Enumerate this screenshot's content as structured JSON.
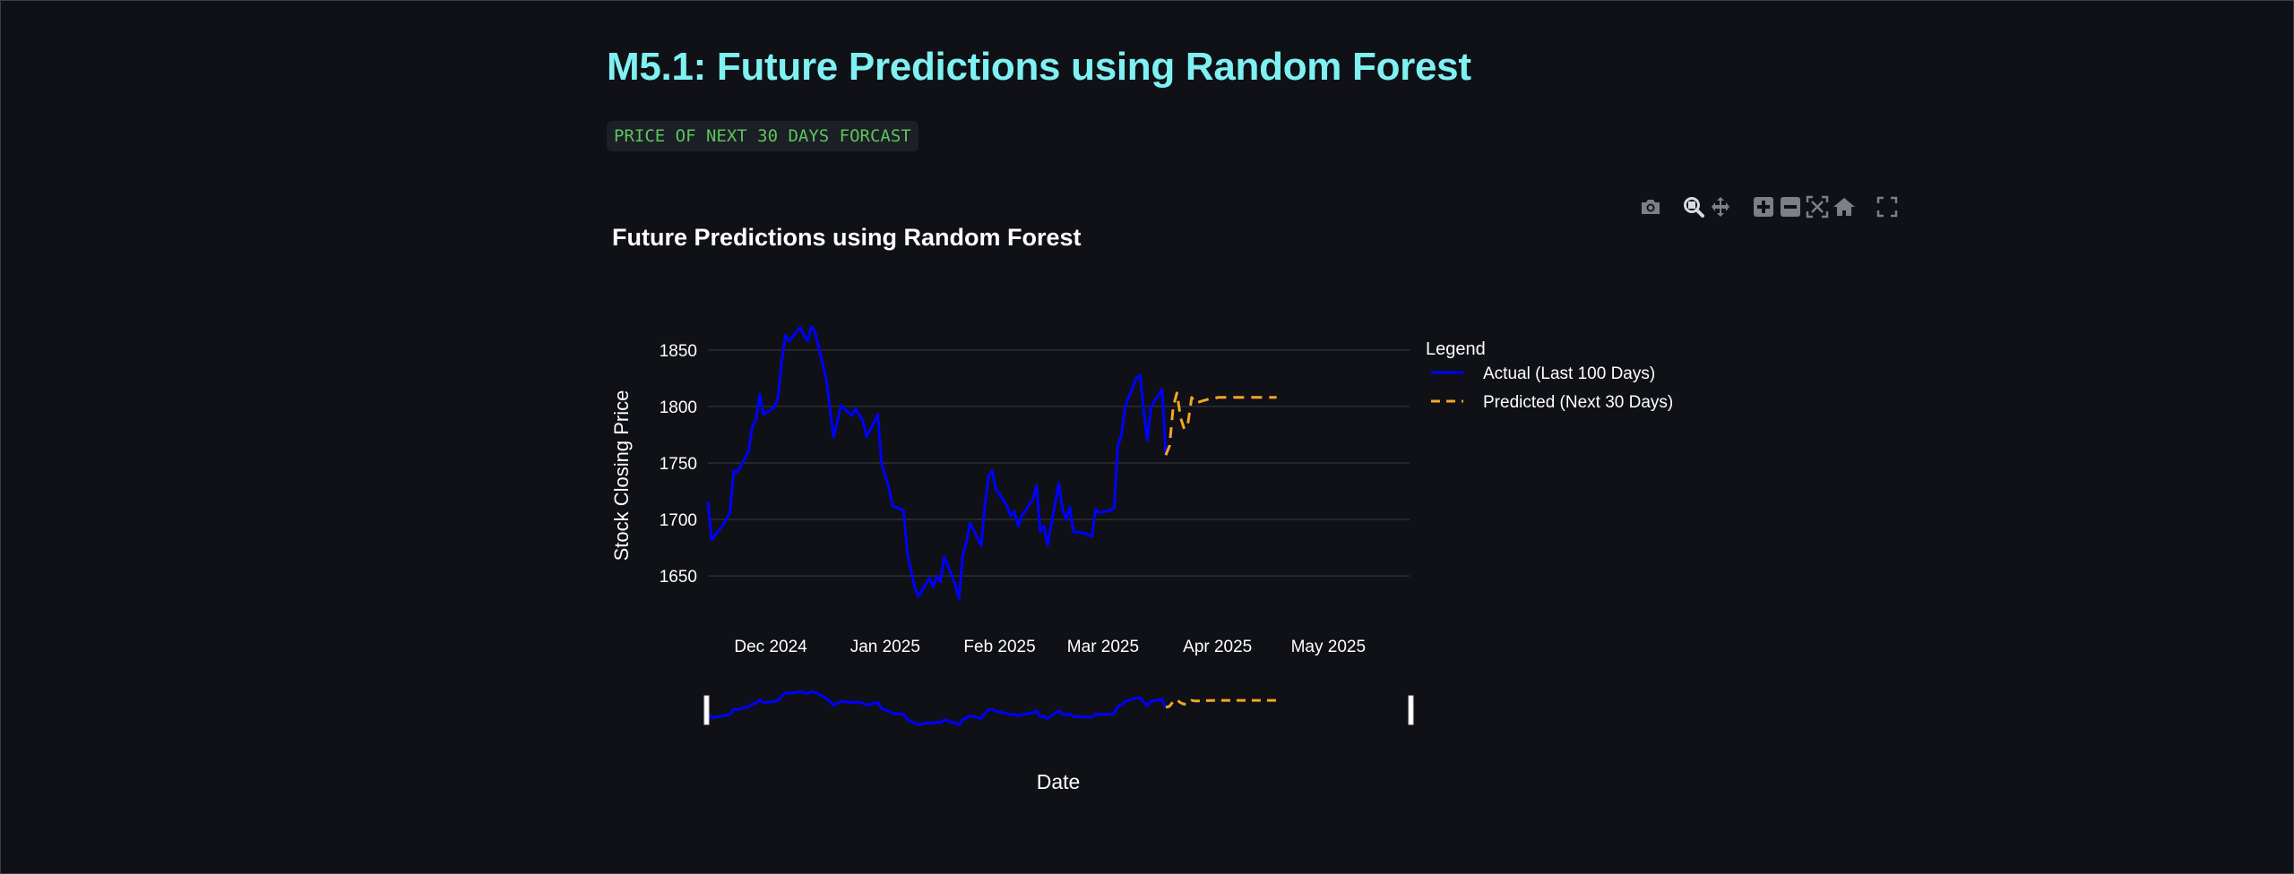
{
  "page": {
    "title": "M5.1: Future Predictions using Random Forest",
    "code_label": "PRICE OF NEXT 30 DAYS FORCAST"
  },
  "modebar": {
    "icons": [
      "camera-icon",
      "zoom-icon",
      "pan-icon",
      "zoom-in-icon",
      "zoom-out-icon",
      "autoscale-icon",
      "reset-axes-icon",
      "fullscreen-icon"
    ],
    "active": "zoom-icon",
    "color": "#7b7f88",
    "active_color": "#d8dbe0"
  },
  "chart_data": {
    "type": "line",
    "title": "Future Predictions using Random Forest",
    "xlabel": "Date",
    "ylabel": "Stock Closing Price",
    "x_ticks": [
      "Dec 2024",
      "Jan 2025",
      "Feb 2025",
      "Mar 2025",
      "Apr 2025",
      "May 2025"
    ],
    "y_ticks": [
      1650,
      1700,
      1750,
      1800,
      1850
    ],
    "ylim": [
      1620,
      1880
    ],
    "xlim": [
      "2024-11-14",
      "2025-05-23"
    ],
    "grid": true,
    "legend": {
      "title": "Legend",
      "position": "right"
    },
    "range_slider": true,
    "series": [
      {
        "name": "Actual (Last 100 Days)",
        "color": "#0000ff",
        "dash": "solid",
        "points": [
          [
            "2024-11-14",
            1716
          ],
          [
            "2024-11-15",
            1682
          ],
          [
            "2024-11-18",
            1695
          ],
          [
            "2024-11-19",
            1700
          ],
          [
            "2024-11-20",
            1706
          ],
          [
            "2024-11-21",
            1743
          ],
          [
            "2024-11-22",
            1742
          ],
          [
            "2024-11-25",
            1760
          ],
          [
            "2024-11-26",
            1782
          ],
          [
            "2024-11-27",
            1788
          ],
          [
            "2024-11-28",
            1811
          ],
          [
            "2024-11-29",
            1793
          ],
          [
            "2024-12-02",
            1799
          ],
          [
            "2024-12-03",
            1808
          ],
          [
            "2024-12-04",
            1840
          ],
          [
            "2024-12-05",
            1863
          ],
          [
            "2024-12-06",
            1858
          ],
          [
            "2024-12-09",
            1870
          ],
          [
            "2024-12-10",
            1863
          ],
          [
            "2024-12-11",
            1858
          ],
          [
            "2024-12-12",
            1871
          ],
          [
            "2024-12-13",
            1866
          ],
          [
            "2024-12-16",
            1825
          ],
          [
            "2024-12-17",
            1800
          ],
          [
            "2024-12-18",
            1773
          ],
          [
            "2024-12-19",
            1786
          ],
          [
            "2024-12-20",
            1801
          ],
          [
            "2024-12-23",
            1792
          ],
          [
            "2024-12-24",
            1798
          ],
          [
            "2024-12-26",
            1787
          ],
          [
            "2024-12-27",
            1773
          ],
          [
            "2024-12-30",
            1793
          ],
          [
            "2024-12-31",
            1750
          ],
          [
            "2025-01-02",
            1728
          ],
          [
            "2025-01-03",
            1712
          ],
          [
            "2025-01-06",
            1708
          ],
          [
            "2025-01-07",
            1670
          ],
          [
            "2025-01-08",
            1655
          ],
          [
            "2025-01-09",
            1640
          ],
          [
            "2025-01-10",
            1632
          ],
          [
            "2025-01-13",
            1648
          ],
          [
            "2025-01-14",
            1640
          ],
          [
            "2025-01-15",
            1650
          ],
          [
            "2025-01-16",
            1645
          ],
          [
            "2025-01-17",
            1667
          ],
          [
            "2025-01-20",
            1642
          ],
          [
            "2025-01-21",
            1630
          ],
          [
            "2025-01-22",
            1668
          ],
          [
            "2025-01-23",
            1680
          ],
          [
            "2025-01-24",
            1697
          ],
          [
            "2025-01-27",
            1677
          ],
          [
            "2025-01-28",
            1713
          ],
          [
            "2025-01-29",
            1738
          ],
          [
            "2025-01-30",
            1743
          ],
          [
            "2025-01-31",
            1727
          ],
          [
            "2025-02-03",
            1712
          ],
          [
            "2025-02-04",
            1703
          ],
          [
            "2025-02-05",
            1707
          ],
          [
            "2025-02-06",
            1694
          ],
          [
            "2025-02-07",
            1703
          ],
          [
            "2025-02-10",
            1718
          ],
          [
            "2025-02-11",
            1730
          ],
          [
            "2025-02-12",
            1689
          ],
          [
            "2025-02-13",
            1694
          ],
          [
            "2025-02-14",
            1677
          ],
          [
            "2025-02-17",
            1732
          ],
          [
            "2025-02-18",
            1710
          ],
          [
            "2025-02-19",
            1700
          ],
          [
            "2025-02-20",
            1711
          ],
          [
            "2025-02-21",
            1689
          ],
          [
            "2025-02-24",
            1688
          ],
          [
            "2025-02-25",
            1686
          ],
          [
            "2025-02-26",
            1685
          ],
          [
            "2025-02-27",
            1709
          ],
          [
            "2025-02-28",
            1706
          ],
          [
            "2025-03-03",
            1708
          ],
          [
            "2025-03-04",
            1710
          ],
          [
            "2025-03-05",
            1765
          ],
          [
            "2025-03-06",
            1775
          ],
          [
            "2025-03-07",
            1800
          ],
          [
            "2025-03-10",
            1825
          ],
          [
            "2025-03-11",
            1828
          ],
          [
            "2025-03-12",
            1797
          ],
          [
            "2025-03-13",
            1770
          ],
          [
            "2025-03-14",
            1800
          ],
          [
            "2025-03-17",
            1815
          ],
          [
            "2025-03-18",
            1757
          ]
        ]
      },
      {
        "name": "Predicted (Next 30 Days)",
        "color": "#f5a623",
        "dash": "dash",
        "points": [
          [
            "2025-03-18",
            1757
          ],
          [
            "2025-03-19",
            1765
          ],
          [
            "2025-03-20",
            1800
          ],
          [
            "2025-03-21",
            1812
          ],
          [
            "2025-03-22",
            1790
          ],
          [
            "2025-03-23",
            1780
          ],
          [
            "2025-03-24",
            1785
          ],
          [
            "2025-03-25",
            1808
          ],
          [
            "2025-03-26",
            1803
          ],
          [
            "2025-03-27",
            1804
          ],
          [
            "2025-03-28",
            1805
          ],
          [
            "2025-03-29",
            1806
          ],
          [
            "2025-03-30",
            1807
          ],
          [
            "2025-03-31",
            1807
          ],
          [
            "2025-04-01",
            1808
          ],
          [
            "2025-04-02",
            1808
          ],
          [
            "2025-04-03",
            1808
          ],
          [
            "2025-04-04",
            1808
          ],
          [
            "2025-04-05",
            1808
          ],
          [
            "2025-04-06",
            1808
          ],
          [
            "2025-04-07",
            1808
          ],
          [
            "2025-04-08",
            1808
          ],
          [
            "2025-04-09",
            1808
          ],
          [
            "2025-04-10",
            1808
          ],
          [
            "2025-04-11",
            1808
          ],
          [
            "2025-04-12",
            1808
          ],
          [
            "2025-04-13",
            1808
          ],
          [
            "2025-04-14",
            1808
          ],
          [
            "2025-04-15",
            1808
          ],
          [
            "2025-04-16",
            1808
          ],
          [
            "2025-04-17",
            1808
          ]
        ]
      }
    ]
  }
}
